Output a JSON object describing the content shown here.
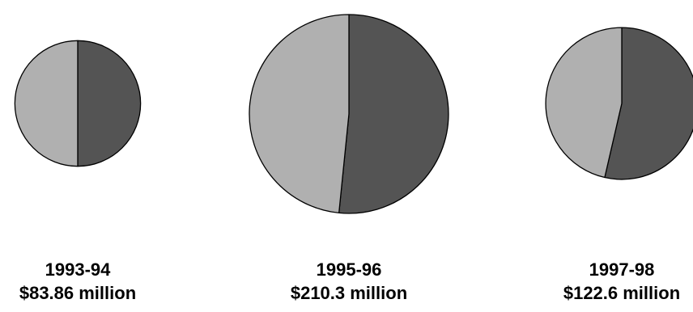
{
  "chart_data": {
    "type": "pie",
    "colors": {
      "series_a": "#545454",
      "series_b": "#b0b0b0",
      "outline": "#000000"
    },
    "charts": [
      {
        "label": "1993-94",
        "total_label": "$83.86 million",
        "total_million": 83.86,
        "slices": [
          {
            "share": 50.0,
            "color_key": "series_a"
          },
          {
            "share": 50.0,
            "color_key": "series_b"
          }
        ]
      },
      {
        "label": "1995-96",
        "total_label": "$210.3 million",
        "total_million": 210.3,
        "slices": [
          {
            "share": 51.6,
            "color_key": "series_a"
          },
          {
            "share": 48.4,
            "color_key": "series_b"
          }
        ]
      },
      {
        "label": "1997-98",
        "total_label": "$122.6 million",
        "total_million": 122.6,
        "slices": [
          {
            "share": 53.6,
            "color_key": "series_a"
          },
          {
            "share": 46.4,
            "color_key": "series_b"
          }
        ]
      }
    ]
  }
}
